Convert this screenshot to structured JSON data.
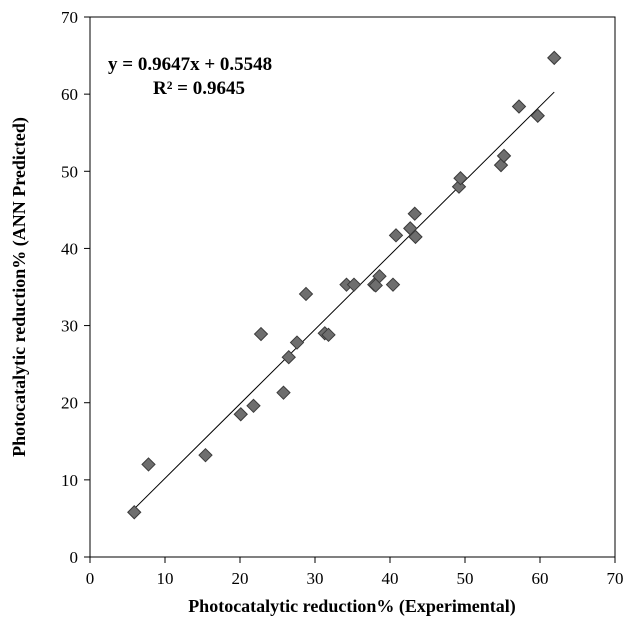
{
  "chart_data": {
    "type": "scatter",
    "title": "",
    "xlabel": "Photocatalytic reduction% (Experimental)",
    "ylabel": "Photocatalytic reduction% (ANN Predicted)",
    "xlim": [
      0,
      70
    ],
    "ylim": [
      0,
      70
    ],
    "xticks": [
      "0",
      "10",
      "20",
      "30",
      "40",
      "50",
      "60",
      "70"
    ],
    "yticks": [
      "0",
      "10",
      "20",
      "30",
      "40",
      "50",
      "60",
      "70"
    ],
    "grid": false,
    "legend": "none",
    "marker": "diamond",
    "marker_color": "#6e6e6e",
    "marker_edge_color": "#3a3a3a",
    "fit_line": {
      "slope": 0.9647,
      "intercept": 0.5548,
      "x_range": [
        5.9,
        61.9
      ]
    },
    "annotation": {
      "equation": "y = 0.9647x + 0.5548",
      "r2": "R² = 0.9645"
    },
    "points": [
      {
        "x": 5.9,
        "y": 5.8
      },
      {
        "x": 7.8,
        "y": 12.0
      },
      {
        "x": 15.4,
        "y": 13.2
      },
      {
        "x": 20.1,
        "y": 18.5
      },
      {
        "x": 21.8,
        "y": 19.6
      },
      {
        "x": 22.8,
        "y": 28.9
      },
      {
        "x": 25.8,
        "y": 21.3
      },
      {
        "x": 26.5,
        "y": 25.9
      },
      {
        "x": 27.6,
        "y": 27.8
      },
      {
        "x": 28.8,
        "y": 34.1
      },
      {
        "x": 31.3,
        "y": 29.0
      },
      {
        "x": 31.8,
        "y": 28.8
      },
      {
        "x": 34.2,
        "y": 35.3
      },
      {
        "x": 35.2,
        "y": 35.3
      },
      {
        "x": 37.9,
        "y": 35.3
      },
      {
        "x": 38.1,
        "y": 35.2
      },
      {
        "x": 38.6,
        "y": 36.4
      },
      {
        "x": 40.4,
        "y": 35.3
      },
      {
        "x": 40.8,
        "y": 41.7
      },
      {
        "x": 42.7,
        "y": 42.6
      },
      {
        "x": 43.3,
        "y": 44.5
      },
      {
        "x": 43.4,
        "y": 41.5
      },
      {
        "x": 49.2,
        "y": 48.0
      },
      {
        "x": 49.4,
        "y": 49.1
      },
      {
        "x": 54.8,
        "y": 50.8
      },
      {
        "x": 55.2,
        "y": 52.0
      },
      {
        "x": 57.2,
        "y": 58.4
      },
      {
        "x": 59.7,
        "y": 57.2
      },
      {
        "x": 61.9,
        "y": 64.7
      }
    ]
  }
}
